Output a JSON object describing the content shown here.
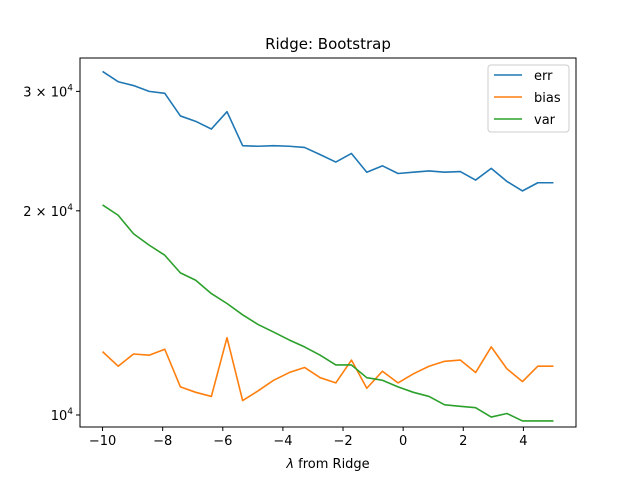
{
  "chart_data": {
    "type": "line",
    "title": "Ridge: Bootstrap",
    "xlabel_prefix": "λ",
    "xlabel_rest": " from Ridge",
    "ylabel": "",
    "yscale": "log",
    "xlim": [
      -10.75,
      5.75
    ],
    "ylim": [
      9600,
      33600
    ],
    "xticks": [
      -10,
      -8,
      -6,
      -4,
      -2,
      0,
      2,
      4
    ],
    "yticks": [
      {
        "value": 10000,
        "base": "10",
        "exp": "4",
        "coef": ""
      },
      {
        "value": 20000,
        "base": "10",
        "exp": "4",
        "coef": "2 × "
      },
      {
        "value": 30000,
        "base": "10",
        "exp": "4",
        "coef": "3 × "
      }
    ],
    "legend_position": "upper right",
    "x": [
      -10.0,
      -9.48,
      -8.97,
      -8.45,
      -7.93,
      -7.41,
      -6.9,
      -6.38,
      -5.86,
      -5.34,
      -4.83,
      -4.31,
      -3.79,
      -3.28,
      -2.76,
      -2.24,
      -1.72,
      -1.21,
      -0.69,
      -0.17,
      0.34,
      0.86,
      1.38,
      1.9,
      2.41,
      2.93,
      3.45,
      3.97,
      4.48,
      5.0
    ],
    "series": [
      {
        "name": "err",
        "color": "#1f77b4",
        "values": [
          32100,
          31000,
          30600,
          30000,
          29800,
          27600,
          27100,
          26400,
          28000,
          24950,
          24900,
          24950,
          24900,
          24800,
          24200,
          23600,
          24300,
          22800,
          23300,
          22700,
          22800,
          22900,
          22800,
          22850,
          22200,
          23100,
          22100,
          21400,
          22000,
          22000
        ]
      },
      {
        "name": "bias",
        "color": "#ff7f0e",
        "values": [
          12400,
          11800,
          12300,
          12250,
          12500,
          11000,
          10800,
          10650,
          13000,
          10500,
          10850,
          11250,
          11550,
          11750,
          11350,
          11150,
          12050,
          10950,
          11600,
          11150,
          11500,
          11800,
          12000,
          12050,
          11550,
          12600,
          11700,
          11200,
          11800,
          11800
        ]
      },
      {
        "name": "var",
        "color": "#2ca02c",
        "values": [
          20400,
          19700,
          18500,
          17800,
          17200,
          16200,
          15800,
          15100,
          14600,
          14050,
          13600,
          13250,
          12900,
          12600,
          12250,
          11850,
          11850,
          11350,
          11250,
          11000,
          10800,
          10650,
          10350,
          10300,
          10250,
          9930,
          10050,
          9800,
          9800,
          9800
        ]
      }
    ]
  }
}
